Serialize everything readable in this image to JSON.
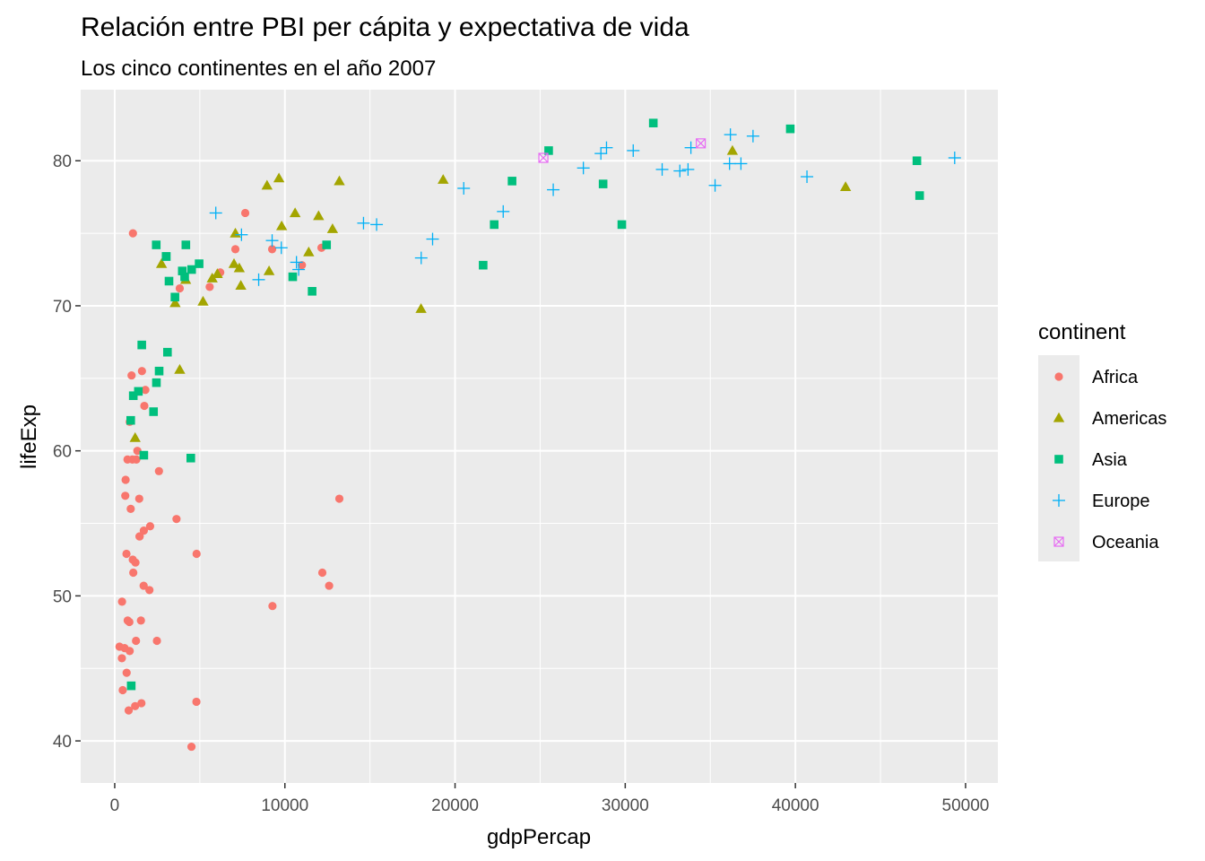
{
  "chart_data": {
    "type": "scatter",
    "title": "Relación entre PBI per cápita y expectativa de vida",
    "subtitle": "Los cinco continentes en el año 2007",
    "xlabel": "gdpPercap",
    "ylabel": "lifeExp",
    "xlim": [
      -2000,
      51900
    ],
    "ylim": [
      37.1,
      84.9
    ],
    "x_ticks": [
      0,
      10000,
      20000,
      30000,
      40000,
      50000
    ],
    "x_tick_labels": [
      "0",
      "10000",
      "20000",
      "30000",
      "40000",
      "50000"
    ],
    "y_ticks": [
      40,
      50,
      60,
      70,
      80
    ],
    "y_tick_labels": [
      "40",
      "50",
      "60",
      "70",
      "80"
    ],
    "grid": true,
    "panel_background": "#ebebeb",
    "legend": {
      "title": "continent",
      "position": "right",
      "entries": [
        {
          "label": "Africa",
          "color": "#F8766D",
          "shape": "circle"
        },
        {
          "label": "Americas",
          "color": "#A3A500",
          "shape": "triangle"
        },
        {
          "label": "Asia",
          "color": "#00BF7D",
          "shape": "square"
        },
        {
          "label": "Europe",
          "color": "#00B0F6",
          "shape": "plus"
        },
        {
          "label": "Oceania",
          "color": "#E76BF3",
          "shape": "boxed-x"
        }
      ]
    },
    "series": [
      {
        "name": "Africa",
        "color": "#F8766D",
        "shape": "circle",
        "points": [
          [
            6200,
            72.3
          ],
          [
            4800,
            42.7
          ],
          [
            1440,
            56.7
          ],
          [
            12600,
            50.7
          ],
          [
            1220,
            52.3
          ],
          [
            430,
            49.6
          ],
          [
            2040,
            50.4
          ],
          [
            700,
            44.7
          ],
          [
            1700,
            50.7
          ],
          [
            990,
            65.2
          ],
          [
            280,
            46.5
          ],
          [
            3630,
            55.3
          ],
          [
            1540,
            48.3
          ],
          [
            2080,
            54.8
          ],
          [
            5580,
            71.3
          ],
          [
            12200,
            51.6
          ],
          [
            640,
            58.0
          ],
          [
            690,
            52.9
          ],
          [
            13200,
            56.7
          ],
          [
            750,
            59.4
          ],
          [
            1330,
            60.0
          ],
          [
            940,
            56.0
          ],
          [
            580,
            46.4
          ],
          [
            1460,
            54.1
          ],
          [
            1460,
            54.1
          ],
          [
            1570,
            42.6
          ],
          [
            9250,
            73.9
          ],
          [
            1040,
            59.4
          ],
          [
            760,
            48.3
          ],
          [
            1090,
            51.6
          ],
          [
            1710,
            54.5
          ],
          [
            1800,
            64.2
          ],
          [
            3820,
            71.2
          ],
          [
            820,
            42.1
          ],
          [
            4810,
            52.9
          ],
          [
            620,
            56.9
          ],
          [
            1250,
            46.9
          ],
          [
            1070,
            75.0
          ],
          [
            880,
            46.2
          ],
          [
            1600,
            65.5
          ],
          [
            860,
            48.2
          ],
          [
            1740,
            63.1
          ],
          [
            7670,
            76.4
          ],
          [
            9270,
            49.3
          ],
          [
            2600,
            58.6
          ],
          [
            1060,
            52.5
          ],
          [
            880,
            62.0
          ],
          [
            7090,
            73.9
          ],
          [
            1200,
            42.4
          ],
          [
            470,
            43.5
          ],
          [
            4510,
            39.6
          ],
          [
            11000,
            72.8
          ],
          [
            12150,
            74.0
          ],
          [
            420,
            45.7
          ],
          [
            2480,
            46.9
          ],
          [
            1270,
            59.4
          ]
        ]
      },
      {
        "name": "Americas",
        "color": "#A3A500",
        "shape": "triangle",
        "points": [
          [
            12800,
            75.3
          ],
          [
            3820,
            65.6
          ],
          [
            9070,
            72.4
          ],
          [
            36300,
            80.7
          ],
          [
            13200,
            78.6
          ],
          [
            7010,
            72.9
          ],
          [
            9650,
            78.8
          ],
          [
            8950,
            78.3
          ],
          [
            6030,
            72.2
          ],
          [
            7090,
            75.0
          ],
          [
            5730,
            71.9
          ],
          [
            5190,
            70.3
          ],
          [
            1200,
            60.9
          ],
          [
            3550,
            70.2
          ],
          [
            7320,
            72.6
          ],
          [
            11980,
            76.2
          ],
          [
            2750,
            72.9
          ],
          [
            9810,
            75.5
          ],
          [
            4170,
            71.8
          ],
          [
            7410,
            71.4
          ],
          [
            19300,
            78.7
          ],
          [
            18000,
            69.8
          ],
          [
            42950,
            78.2
          ],
          [
            10600,
            76.4
          ],
          [
            11400,
            73.7
          ]
        ]
      },
      {
        "name": "Asia",
        "color": "#00BF7D",
        "shape": "square",
        "points": [
          [
            970,
            43.8
          ],
          [
            29800,
            75.6
          ],
          [
            1390,
            64.1
          ],
          [
            1710,
            59.7
          ],
          [
            4960,
            72.9
          ],
          [
            39700,
            82.2
          ],
          [
            2450,
            64.7
          ],
          [
            3540,
            70.6
          ],
          [
            11600,
            71.0
          ],
          [
            4470,
            59.5
          ],
          [
            25500,
            80.7
          ],
          [
            31650,
            82.6
          ],
          [
            4520,
            72.5
          ],
          [
            1590,
            67.3
          ],
          [
            23350,
            78.6
          ],
          [
            47300,
            77.6
          ],
          [
            4110,
            72.0
          ],
          [
            12450,
            74.2
          ],
          [
            3100,
            66.8
          ],
          [
            940,
            62.1
          ],
          [
            1090,
            63.8
          ],
          [
            22300,
            75.6
          ],
          [
            2610,
            65.5
          ],
          [
            3190,
            71.7
          ],
          [
            21650,
            72.8
          ],
          [
            47140,
            80.0
          ],
          [
            3970,
            72.4
          ],
          [
            28700,
            78.4
          ],
          [
            3020,
            73.4
          ],
          [
            4180,
            74.2
          ],
          [
            2440,
            74.2
          ],
          [
            3030,
            73.4
          ],
          [
            2280,
            62.7
          ],
          [
            10460,
            72.0
          ]
        ]
      },
      {
        "name": "Europe",
        "color": "#00B0F6",
        "shape": "plus",
        "points": [
          [
            5940,
            76.4
          ],
          [
            36130,
            79.8
          ],
          [
            33690,
            79.4
          ],
          [
            7450,
            74.9
          ],
          [
            10680,
            73.0
          ],
          [
            14620,
            75.7
          ],
          [
            22830,
            76.5
          ],
          [
            35280,
            78.3
          ],
          [
            33210,
            79.3
          ],
          [
            30470,
            80.7
          ],
          [
            32170,
            79.4
          ],
          [
            27540,
            79.5
          ],
          [
            18010,
            73.3
          ],
          [
            36180,
            81.8
          ],
          [
            40680,
            78.9
          ],
          [
            28570,
            80.5
          ],
          [
            9250,
            74.5
          ],
          [
            36800,
            79.8
          ],
          [
            49360,
            80.2
          ],
          [
            15390,
            75.6
          ],
          [
            20510,
            78.1
          ],
          [
            10810,
            72.5
          ],
          [
            9790,
            74.0
          ],
          [
            8460,
            71.8
          ],
          [
            25770,
            78.0
          ],
          [
            37510,
            81.7
          ],
          [
            33860,
            80.9
          ],
          [
            28900,
            80.9
          ],
          [
            18680,
            74.6
          ]
        ]
      },
      {
        "name": "Oceania",
        "color": "#E76BF3",
        "shape": "boxed-x",
        "points": [
          [
            34440,
            81.2
          ],
          [
            25190,
            80.2
          ]
        ]
      }
    ]
  }
}
